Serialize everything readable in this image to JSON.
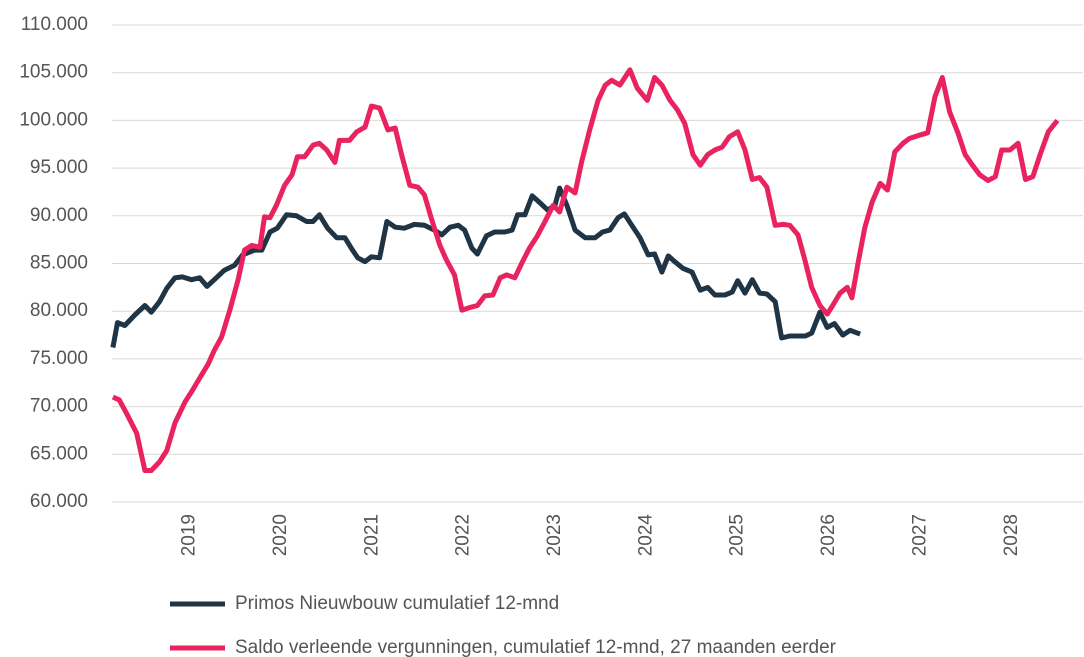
{
  "chart_data": {
    "type": "line",
    "xlim": [
      2018.15,
      2028.78
    ],
    "xticks": [
      2019,
      2020,
      2021,
      2022,
      2023,
      2024,
      2025,
      2026,
      2027,
      2028
    ],
    "ylim": [
      60000,
      110000
    ],
    "yticks": [
      {
        "value": 60000,
        "label": "60.000"
      },
      {
        "value": 65000,
        "label": "65.000"
      },
      {
        "value": 70000,
        "label": "70.000"
      },
      {
        "value": 75000,
        "label": "75.000"
      },
      {
        "value": 80000,
        "label": "80.000"
      },
      {
        "value": 85000,
        "label": "85.000"
      },
      {
        "value": 90000,
        "label": "90.000"
      },
      {
        "value": 95000,
        "label": "95.000"
      },
      {
        "value": 100000,
        "label": "100.000"
      },
      {
        "value": 105000,
        "label": "105.000"
      },
      {
        "value": 110000,
        "label": "110.000"
      }
    ],
    "grid": true,
    "series": [
      {
        "name": "Primos Nieuwbouw cumulatief 12-mnd",
        "color": "#1f3445",
        "x": [
          2018.16,
          2018.21,
          2018.29,
          2018.4,
          2018.51,
          2018.58,
          2018.67,
          2018.75,
          2018.84,
          2018.92,
          2019.02,
          2019.11,
          2019.19,
          2019.27,
          2019.38,
          2019.49,
          2019.58,
          2019.71,
          2019.79,
          2019.88,
          2019.96,
          2020.06,
          2020.17,
          2020.28,
          2020.35,
          2020.42,
          2020.51,
          2020.61,
          2020.7,
          2020.77,
          2020.84,
          2020.92,
          2020.99,
          2021.08,
          2021.16,
          2021.25,
          2021.35,
          2021.46,
          2021.57,
          2021.68,
          2021.76,
          2021.85,
          2021.94,
          2022.01,
          2022.09,
          2022.15,
          2022.25,
          2022.34,
          2022.45,
          2022.53,
          2022.59,
          2022.67,
          2022.75,
          2022.83,
          2022.92,
          2023.0,
          2023.05,
          2023.13,
          2023.22,
          2023.33,
          2023.44,
          2023.52,
          2023.6,
          2023.69,
          2023.76,
          2023.84,
          2023.93,
          2024.02,
          2024.09,
          2024.17,
          2024.24,
          2024.31,
          2024.4,
          2024.5,
          2024.59,
          2024.67,
          2024.75,
          2024.86,
          2024.94,
          2025.0,
          2025.08,
          2025.16,
          2025.24,
          2025.32,
          2025.41,
          2025.48,
          2025.57,
          2025.74,
          2025.81,
          2025.9,
          2025.98,
          2026.06,
          2026.15,
          2026.23,
          2026.34
        ],
        "values": [
          76200,
          78800,
          78500,
          79600,
          80600,
          79900,
          81000,
          82400,
          83500,
          83600,
          83300,
          83500,
          82600,
          83300,
          84300,
          84800,
          85900,
          86400,
          86400,
          88300,
          88700,
          90100,
          90000,
          89400,
          89400,
          90100,
          88700,
          87700,
          87700,
          86600,
          85600,
          85200,
          85700,
          85600,
          89400,
          88800,
          88700,
          89100,
          89000,
          88500,
          88000,
          88800,
          89000,
          88500,
          86600,
          86000,
          87900,
          88300,
          88300,
          88500,
          90100,
          90100,
          92100,
          91400,
          90600,
          91100,
          92900,
          91100,
          88500,
          87700,
          87700,
          88300,
          88500,
          89800,
          90200,
          89000,
          87700,
          85900,
          86000,
          84100,
          85800,
          85200,
          84500,
          84100,
          82200,
          82500,
          81700,
          81700,
          82000,
          83200,
          81900,
          83300,
          81900,
          81800,
          81000,
          77200,
          77400,
          77400,
          77700,
          79900,
          78300,
          78700,
          77500,
          78000,
          77600
        ]
      },
      {
        "name": "Saldo verleende vergunningen, cumulatief 12-mnd, 27 maanden eerder",
        "color": "#e8235f",
        "x": [
          2018.16,
          2018.23,
          2018.32,
          2018.42,
          2018.51,
          2018.58,
          2018.67,
          2018.75,
          2018.84,
          2018.95,
          2019.03,
          2019.11,
          2019.2,
          2019.27,
          2019.35,
          2019.44,
          2019.53,
          2019.6,
          2019.68,
          2019.77,
          2019.82,
          2019.88,
          2019.95,
          2020.04,
          2020.12,
          2020.18,
          2020.26,
          2020.35,
          2020.42,
          2020.5,
          2020.59,
          2020.64,
          2020.75,
          2020.83,
          2020.92,
          2020.99,
          2021.08,
          2021.17,
          2021.25,
          2021.32,
          2021.41,
          2021.5,
          2021.57,
          2021.65,
          2021.74,
          2021.81,
          2021.9,
          2021.98,
          2022.07,
          2022.15,
          2022.23,
          2022.32,
          2022.4,
          2022.47,
          2022.56,
          2022.64,
          2022.72,
          2022.8,
          2022.89,
          2022.98,
          2023.05,
          2023.13,
          2023.22,
          2023.29,
          2023.38,
          2023.47,
          2023.55,
          2023.62,
          2023.71,
          2023.82,
          2023.9,
          2024.01,
          2024.09,
          2024.17,
          2024.26,
          2024.34,
          2024.42,
          2024.51,
          2024.59,
          2024.67,
          2024.75,
          2024.83,
          2024.91,
          2025.0,
          2025.08,
          2025.16,
          2025.24,
          2025.32,
          2025.41,
          2025.5,
          2025.57,
          2025.66,
          2025.74,
          2025.81,
          2025.9,
          2025.98,
          2026.04,
          2026.12,
          2026.2,
          2026.25,
          2026.32,
          2026.39,
          2026.47,
          2026.56,
          2026.64,
          2026.72,
          2026.81,
          2026.88,
          2026.97,
          2027.08,
          2027.16,
          2027.24,
          2027.32,
          2027.41,
          2027.49,
          2027.57,
          2027.65,
          2027.74,
          2027.82,
          2027.89,
          2027.98,
          2028.07,
          2028.15,
          2028.23,
          2028.31,
          2028.4,
          2028.5
        ],
        "values": [
          71000,
          70700,
          69100,
          67200,
          63300,
          63300,
          64200,
          65400,
          68300,
          70500,
          71700,
          73000,
          74400,
          75900,
          77300,
          80100,
          83300,
          86400,
          86900,
          86700,
          89900,
          89800,
          91100,
          93200,
          94300,
          96200,
          96200,
          97400,
          97600,
          96900,
          95600,
          97900,
          97900,
          98800,
          99300,
          101500,
          101300,
          99000,
          99200,
          96400,
          93200,
          93000,
          92200,
          89600,
          86900,
          85400,
          83800,
          80100,
          80400,
          80600,
          81600,
          81700,
          83500,
          83800,
          83500,
          85100,
          86600,
          87800,
          89400,
          91100,
          90400,
          93000,
          92400,
          95600,
          99000,
          102100,
          103700,
          104200,
          103700,
          105300,
          103400,
          102100,
          104500,
          103700,
          102100,
          101100,
          99700,
          96400,
          95300,
          96400,
          96900,
          97200,
          98300,
          98800,
          96900,
          93800,
          94000,
          93000,
          89000,
          89100,
          89000,
          88000,
          85200,
          82500,
          80600,
          79700,
          80600,
          81900,
          82500,
          81400,
          85200,
          88700,
          91400,
          93400,
          92700,
          96700,
          97600,
          98100,
          98400,
          98700,
          102500,
          104500,
          100900,
          98700,
          96400,
          95300,
          94300,
          93700,
          94100,
          96900,
          96900,
          97600,
          93800,
          94100,
          96400,
          98800,
          100000
        ]
      }
    ]
  }
}
